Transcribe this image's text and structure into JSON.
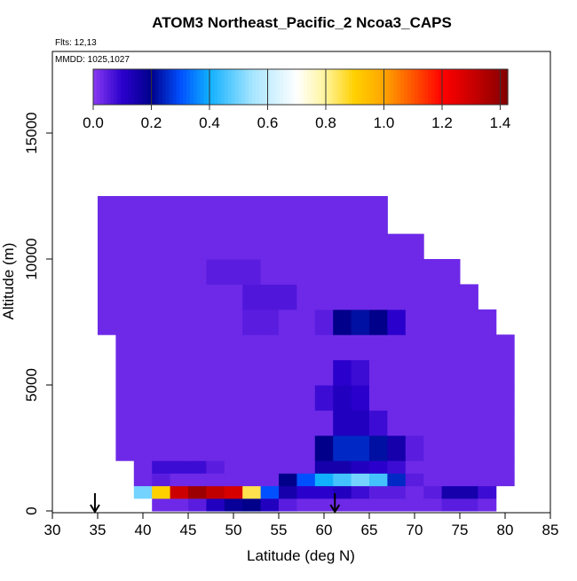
{
  "chart_data": {
    "type": "heatmap",
    "title": "ATOM3 Northeast_Pacific_2 Ncoa3_CAPS",
    "subtitle": "Flts: 12,13",
    "annotation": "MMDD: 1025,1027",
    "xlabel": "Latitude (deg N)",
    "ylabel": "Altitude (m)",
    "xlim": [
      30,
      85
    ],
    "xticks": [
      30,
      35,
      40,
      45,
      50,
      55,
      60,
      65,
      70,
      75,
      80,
      85
    ],
    "ylim": [
      -70,
      18240
    ],
    "yticks": [
      0,
      5000,
      10000,
      15000
    ],
    "x_edges": [
      35,
      37,
      39,
      41,
      43,
      45,
      47,
      49,
      51,
      53,
      55,
      57,
      59,
      61,
      63,
      65,
      67,
      69,
      71,
      73,
      75,
      77,
      79,
      81
    ],
    "y_edges": [
      0,
      500,
      1000,
      1500,
      2000,
      3000,
      4000,
      5000,
      6000,
      7000,
      8000,
      9000,
      10000,
      11000,
      12500
    ],
    "z": [
      [
        null,
        null,
        null,
        0.03,
        0.03,
        0.05,
        0.12,
        0.18,
        0.2,
        0.12,
        0.05,
        0.03,
        0.03,
        0.03,
        0.03,
        0.03,
        0.03,
        0.03,
        0.03,
        0.05,
        0.05,
        0.03,
        null
      ],
      [
        null,
        null,
        0.5,
        0.9,
        1.3,
        1.38,
        1.32,
        1.28,
        0.85,
        0.3,
        0.15,
        0.1,
        0.1,
        0.12,
        0.08,
        0.05,
        0.05,
        0.03,
        0.05,
        0.15,
        0.15,
        0.08,
        null
      ],
      [
        null,
        null,
        0.03,
        0.05,
        0.03,
        0.03,
        0.03,
        0.03,
        0.03,
        0.03,
        0.2,
        0.3,
        0.4,
        0.45,
        0.5,
        0.45,
        0.25,
        0.05,
        0.03,
        0.03,
        0.03,
        0.03,
        0.03
      ],
      [
        null,
        null,
        0.03,
        0.08,
        0.08,
        0.08,
        0.05,
        0.03,
        0.03,
        0.03,
        0.03,
        0.03,
        0.15,
        0.15,
        0.12,
        0.1,
        0.08,
        0.03,
        0.03,
        0.03,
        0.03,
        0.03,
        0.03
      ],
      [
        null,
        0.03,
        0.03,
        0.03,
        0.03,
        0.03,
        0.03,
        0.03,
        0.03,
        0.03,
        0.03,
        0.03,
        0.2,
        0.25,
        0.25,
        0.22,
        0.15,
        0.05,
        0.03,
        0.03,
        0.03,
        0.03,
        0.03
      ],
      [
        null,
        0.03,
        0.03,
        0.03,
        0.03,
        0.03,
        0.03,
        0.03,
        0.03,
        0.03,
        0.03,
        0.03,
        0.03,
        0.12,
        0.12,
        0.08,
        0.03,
        0.03,
        0.03,
        0.03,
        0.03,
        0.03,
        0.03
      ],
      [
        null,
        0.03,
        0.03,
        0.03,
        0.03,
        0.03,
        0.03,
        0.03,
        0.03,
        0.03,
        0.03,
        0.03,
        0.08,
        0.12,
        0.1,
        0.03,
        0.03,
        0.03,
        0.03,
        0.03,
        0.03,
        0.03,
        0.03
      ],
      [
        null,
        0.03,
        0.03,
        0.03,
        0.03,
        0.03,
        0.03,
        0.03,
        0.03,
        0.03,
        0.03,
        0.03,
        0.03,
        0.1,
        0.08,
        0.03,
        0.03,
        0.03,
        0.03,
        0.03,
        0.03,
        0.03,
        0.03
      ],
      [
        null,
        0.03,
        0.03,
        0.03,
        0.03,
        0.03,
        0.03,
        0.03,
        0.03,
        0.03,
        0.03,
        0.03,
        0.03,
        0.03,
        0.03,
        0.03,
        0.03,
        0.03,
        0.03,
        0.03,
        0.03,
        0.03,
        0.03
      ],
      [
        0.03,
        0.03,
        0.03,
        0.03,
        0.03,
        0.03,
        0.03,
        0.03,
        0.05,
        0.05,
        0.03,
        0.03,
        0.05,
        0.2,
        0.22,
        0.2,
        0.1,
        0.03,
        0.03,
        0.03,
        0.03,
        0.03,
        null
      ],
      [
        0.03,
        0.03,
        0.03,
        0.03,
        0.03,
        0.03,
        0.03,
        0.03,
        0.06,
        0.06,
        0.06,
        0.03,
        0.03,
        0.03,
        0.03,
        0.03,
        0.03,
        0.03,
        0.03,
        0.03,
        0.03,
        null,
        null
      ],
      [
        0.03,
        0.03,
        0.03,
        0.03,
        0.03,
        0.03,
        0.05,
        0.05,
        0.05,
        0.03,
        0.03,
        0.03,
        0.03,
        0.03,
        0.03,
        0.03,
        0.03,
        0.03,
        0.03,
        0.03,
        null,
        null,
        null
      ],
      [
        0.03,
        0.03,
        0.03,
        0.03,
        0.03,
        0.03,
        0.03,
        0.03,
        0.03,
        0.03,
        0.03,
        0.03,
        0.03,
        0.03,
        0.03,
        0.03,
        0.03,
        0.03,
        null,
        null,
        null,
        null,
        null
      ],
      [
        0.03,
        0.03,
        0.03,
        0.03,
        0.03,
        0.03,
        0.03,
        0.03,
        0.03,
        0.03,
        0.03,
        0.03,
        0.03,
        0.03,
        0.03,
        0.03,
        null,
        null,
        null,
        null,
        null,
        null,
        null
      ]
    ],
    "colorscale": [
      [
        0,
        "#8a3af2"
      ],
      [
        0.1,
        "#2a00cc"
      ],
      [
        0.2,
        "#00008b"
      ],
      [
        0.3,
        "#0050ff"
      ],
      [
        0.4,
        "#10b0ff"
      ],
      [
        0.55,
        "#a8e6ff"
      ],
      [
        0.7,
        "#ffffff"
      ],
      [
        0.8,
        "#fff49a"
      ],
      [
        0.9,
        "#ffd000"
      ],
      [
        1.0,
        "#ffa500"
      ],
      [
        1.1,
        "#ff5500"
      ],
      [
        1.2,
        "#ff0000"
      ],
      [
        1.3,
        "#cc0000"
      ],
      [
        1.43,
        "#800000"
      ]
    ],
    "colorbar_lim": [
      0,
      1.426
    ],
    "colorbar_ticks": [
      {
        "value": 0,
        "label": "0.0"
      },
      0.2,
      0.4,
      0.6,
      0.8,
      {
        "value": 1,
        "label": "1.0"
      },
      1.2,
      1.4
    ],
    "arrows_x": [
      34.7,
      61.2
    ]
  }
}
